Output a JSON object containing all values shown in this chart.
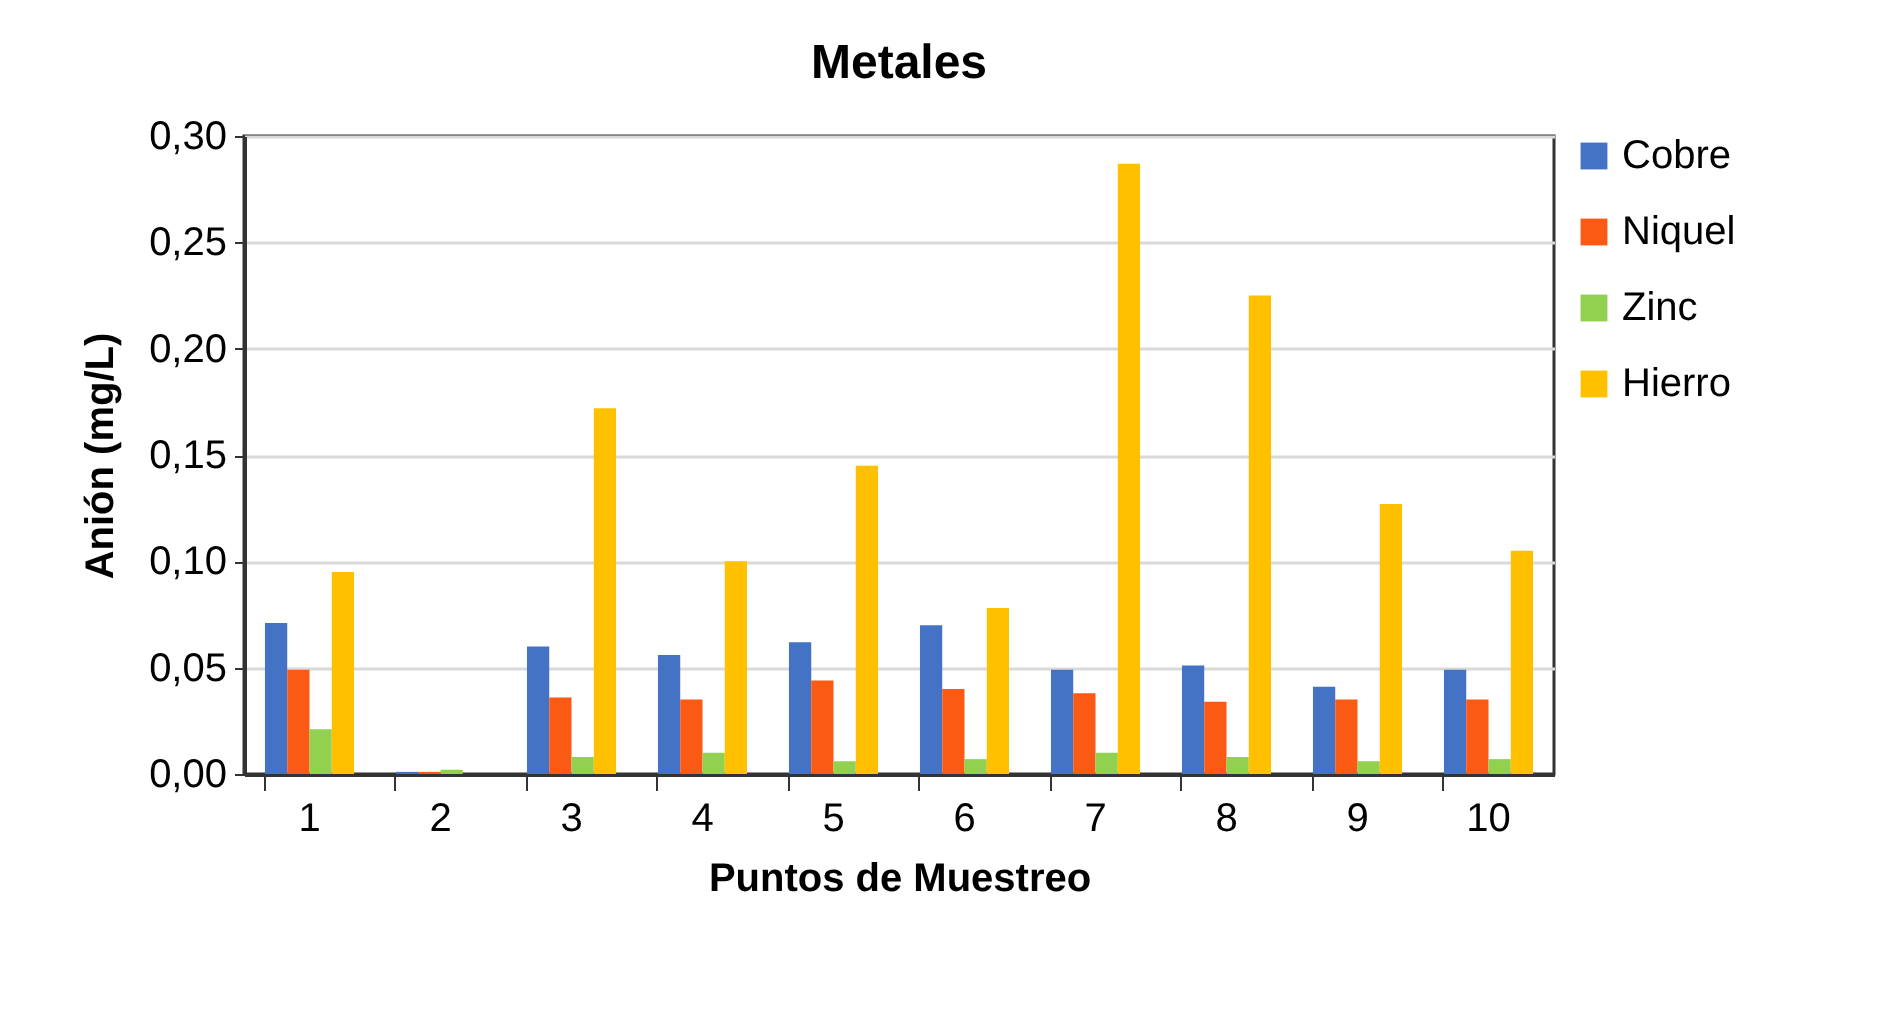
{
  "chart_data": {
    "type": "bar",
    "title": "Metales",
    "xlabel": "Puntos de Muestreo",
    "ylabel": "Anión (mg/L)",
    "categories": [
      "1",
      "2",
      "3",
      "4",
      "5",
      "6",
      "7",
      "8",
      "9",
      "10"
    ],
    "series": [
      {
        "name": "Cobre",
        "color": "#4472c4",
        "values": [
          0.071,
          0.001,
          0.06,
          0.056,
          0.062,
          0.07,
          0.049,
          0.051,
          0.041,
          0.049
        ]
      },
      {
        "name": "Niquel",
        "color": "#fa5a14",
        "values": [
          0.049,
          0.001,
          0.036,
          0.035,
          0.044,
          0.04,
          0.038,
          0.034,
          0.035,
          0.035
        ]
      },
      {
        "name": "Zinc",
        "color": "#92d050",
        "values": [
          0.021,
          0.002,
          0.008,
          0.01,
          0.006,
          0.007,
          0.01,
          0.008,
          0.006,
          0.007
        ]
      },
      {
        "name": "Hierro",
        "color": "#ffc000",
        "values": [
          0.095,
          0,
          0.172,
          0.1,
          0.145,
          0.078,
          0.287,
          0.225,
          0.127,
          0.105
        ]
      }
    ],
    "ylim": [
      0,
      0.3
    ],
    "yticks": [
      {
        "value": 0,
        "label": "0,00"
      },
      {
        "value": 0.05,
        "label": "0,05"
      },
      {
        "value": 0.1,
        "label": "0,10"
      },
      {
        "value": 0.15,
        "label": "0,15"
      },
      {
        "value": 0.2,
        "label": "0,20"
      },
      {
        "value": 0.25,
        "label": "0,25"
      },
      {
        "value": 0.3,
        "label": "0,30"
      }
    ],
    "grid": "y",
    "legend": "right"
  }
}
